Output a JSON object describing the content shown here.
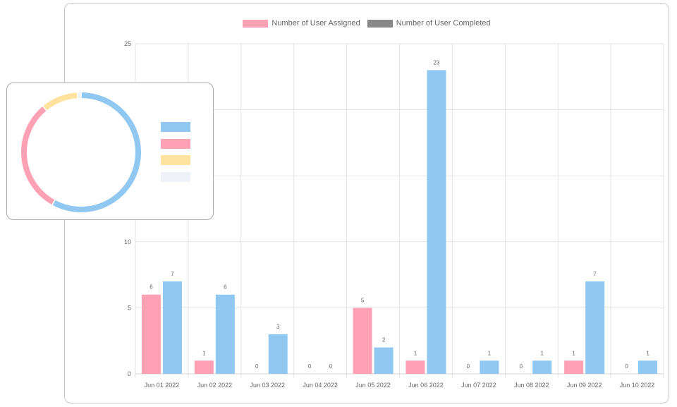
{
  "chart_data": [
    {
      "type": "bar",
      "title": "",
      "xlabel": "",
      "ylabel": "",
      "ylim": [
        0,
        25
      ],
      "yticks": [
        0,
        5,
        10,
        25
      ],
      "grid": true,
      "legend_position": "top-center",
      "categories": [
        "Jun 01 2022",
        "Jun 02 2022",
        "Jun 03 2022",
        "Jun 04 2022",
        "Jun 05 2022",
        "Jun 06 2022",
        "Jun 07 2022",
        "Jun 08 2022",
        "Jun 09 2022",
        "Jun 10 2022"
      ],
      "series": [
        {
          "name": "Number of User Assigned",
          "color": "#ffa1b5",
          "values": [
            6,
            1,
            0,
            0,
            5,
            1,
            0,
            0,
            1,
            0
          ]
        },
        {
          "name": "Number of User Completed",
          "color": "#90c8f2",
          "values": [
            7,
            6,
            3,
            0,
            2,
            23,
            1,
            1,
            7,
            1
          ]
        }
      ],
      "legend_swatch_colors": [
        "#ffa1b5",
        "#888888"
      ]
    },
    {
      "type": "pie",
      "variant": "donut",
      "legend_position": "right",
      "slices": [
        {
          "label": "",
          "value": 58,
          "color": "#90c8f2"
        },
        {
          "label": "",
          "value": 31,
          "color": "#ffa1b5"
        },
        {
          "label": "",
          "value": 10,
          "color": "#ffe29e"
        },
        {
          "label": "",
          "value": 1,
          "color": "#eef1f5"
        }
      ]
    }
  ]
}
